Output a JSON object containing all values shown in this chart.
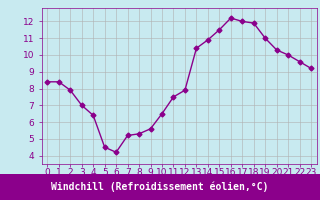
{
  "x": [
    0,
    1,
    2,
    3,
    4,
    5,
    6,
    7,
    8,
    9,
    10,
    11,
    12,
    13,
    14,
    15,
    16,
    17,
    18,
    19,
    20,
    21,
    22,
    23
  ],
  "y": [
    8.4,
    8.4,
    7.9,
    7.0,
    6.4,
    4.5,
    4.2,
    5.2,
    5.3,
    5.6,
    6.5,
    7.5,
    7.9,
    10.4,
    10.9,
    11.5,
    12.2,
    12.0,
    11.9,
    11.0,
    10.3,
    10.0,
    9.6,
    9.2
  ],
  "line_color": "#8b008b",
  "marker": "D",
  "marker_size": 2.5,
  "line_width": 1.0,
  "bg_color": "#c8eaf0",
  "grid_color": "#b0b0b0",
  "xlabel": "Windchill (Refroidissement éolien,°C)",
  "xlabel_color": "#8b008b",
  "tick_color": "#8b008b",
  "label_bg_color": "#8b008b",
  "label_text_color": "#ffffff",
  "ylim": [
    3.5,
    12.8
  ],
  "xlim": [
    -0.5,
    23.5
  ],
  "yticks": [
    4,
    5,
    6,
    7,
    8,
    9,
    10,
    11,
    12
  ],
  "xtick_labels": [
    "0",
    "1",
    "2",
    "3",
    "4",
    "5",
    "6",
    "7",
    "8",
    "9",
    "10",
    "11",
    "12",
    "13",
    "14",
    "15",
    "16",
    "17",
    "18",
    "19",
    "20",
    "21",
    "22",
    "23"
  ],
  "xlabel_fontsize": 7.0,
  "tick_fontsize": 6.5
}
